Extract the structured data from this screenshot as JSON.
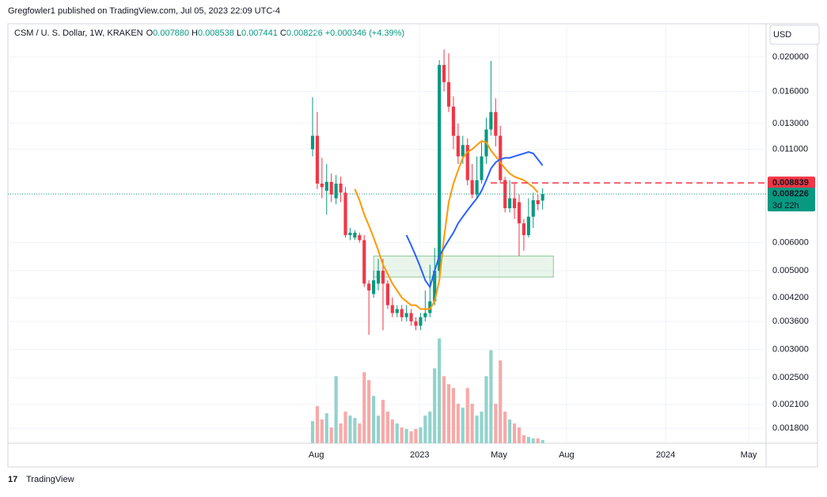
{
  "header": {
    "published": "Gregfowler1 published on TradingView.com, Jul 05, 2023 22:09 UTC-4",
    "footer": "TradingView"
  },
  "chart_data": {
    "type": "candlestick",
    "title": "CSM / U. S. Dollar, 1W, KRAKEN",
    "ohlc_labels": [
      {
        "k": "O",
        "v": "0.007880"
      },
      {
        "k": "H",
        "v": "0.008538"
      },
      {
        "k": "L",
        "v": "0.007441"
      },
      {
        "k": "C",
        "v": "0.008226"
      }
    ],
    "change": "+0.000346 (+4.39%)",
    "currency": "USD",
    "log_scale": true,
    "up_color": "#089981",
    "down_color": "#f23645",
    "volume_up_color": "#92d2cc",
    "volume_down_color": "#f7a9a7",
    "open": [
      0.011,
      0.012,
      0.0088,
      0.0084,
      0.0089,
      0.008,
      0.0088,
      0.0083,
      0.0063,
      0.0062,
      0.0063,
      0.0061,
      0.0046,
      0.0043,
      0.0046,
      0.005,
      0.0046,
      0.004,
      0.0038,
      0.0039,
      0.0037,
      0.0038,
      0.0036,
      0.0035,
      0.0037,
      0.0038,
      0.0041,
      0.005,
      0.019,
      0.017,
      0.0145,
      0.012,
      0.0105,
      0.0113,
      0.009,
      0.0082,
      0.009,
      0.0105,
      0.0125,
      0.014,
      0.012,
      0.009,
      0.0075,
      0.008,
      0.0078,
      0.0068,
      0.0063,
      0.0071,
      0.0079,
      0.00788
    ],
    "high": [
      0.0154,
      0.014,
      0.0104,
      0.01,
      0.0094,
      0.0093,
      0.0092,
      0.0086,
      0.0066,
      0.0065,
      0.0064,
      0.0063,
      0.0047,
      0.005,
      0.0054,
      0.0054,
      0.0047,
      0.0042,
      0.004,
      0.004,
      0.004,
      0.0039,
      0.0037,
      0.0038,
      0.0044,
      0.0052,
      0.0058,
      0.0196,
      0.021,
      0.0205,
      0.0155,
      0.013,
      0.012,
      0.0118,
      0.01,
      0.0105,
      0.0115,
      0.0135,
      0.0195,
      0.0153,
      0.0128,
      0.0092,
      0.009,
      0.0088,
      0.0082,
      0.007,
      0.008,
      0.0083,
      0.0082,
      0.008538
    ],
    "low": [
      0.0105,
      0.0085,
      0.008,
      0.0072,
      0.0078,
      0.0077,
      0.0078,
      0.0062,
      0.0061,
      0.0061,
      0.006,
      0.0045,
      0.0033,
      0.0042,
      0.0044,
      0.0034,
      0.0039,
      0.0037,
      0.0037,
      0.0036,
      0.0036,
      0.0035,
      0.0034,
      0.0034,
      0.0036,
      0.0037,
      0.004,
      0.0048,
      0.016,
      0.014,
      0.011,
      0.01,
      0.01,
      0.0087,
      0.008,
      0.008,
      0.0088,
      0.01,
      0.012,
      0.0112,
      0.0088,
      0.0073,
      0.0073,
      0.007,
      0.0055,
      0.0057,
      0.0062,
      0.0066,
      0.0074,
      0.007441
    ],
    "close": [
      0.012,
      0.0088,
      0.0086,
      0.0089,
      0.0082,
      0.0088,
      0.0083,
      0.0063,
      0.0064,
      0.0064,
      0.0061,
      0.0046,
      0.0044,
      0.0047,
      0.005,
      0.0046,
      0.004,
      0.0038,
      0.0039,
      0.0037,
      0.0038,
      0.0036,
      0.0035,
      0.0037,
      0.0038,
      0.0041,
      0.005,
      0.019,
      0.017,
      0.0145,
      0.012,
      0.0105,
      0.0113,
      0.009,
      0.0082,
      0.009,
      0.0105,
      0.0125,
      0.014,
      0.012,
      0.009,
      0.0075,
      0.008,
      0.0075,
      0.0068,
      0.0063,
      0.0071,
      0.0079,
      0.0077,
      0.008226
    ],
    "volume": [
      28,
      47,
      30,
      38,
      20,
      85,
      25,
      40,
      35,
      32,
      25,
      90,
      80,
      60,
      35,
      55,
      40,
      30,
      25,
      20,
      18,
      15,
      18,
      20,
      35,
      40,
      95,
      133,
      85,
      75,
      70,
      50,
      45,
      70,
      50,
      35,
      40,
      85,
      118,
      50,
      105,
      40,
      30,
      25,
      20,
      10,
      8,
      6,
      6,
      4
    ],
    "overlays": [
      {
        "color": "#ff9800",
        "values": [
          null,
          null,
          null,
          null,
          null,
          null,
          null,
          null,
          null,
          0.0085,
          0.0079,
          0.0072,
          0.0067,
          0.0062,
          0.0057,
          0.0052,
          0.0049,
          0.0046,
          0.0044,
          0.0042,
          0.0041,
          0.004,
          0.004,
          0.0039,
          0.0039,
          0.0039,
          0.0041,
          0.0047,
          0.0062,
          0.0078,
          0.0088,
          0.0096,
          0.0104,
          0.0108,
          0.011,
          0.0113,
          0.0116,
          0.0115,
          0.0109,
          0.0105,
          0.0101,
          0.0097,
          0.0094,
          0.0092,
          0.0091,
          0.009,
          0.0088,
          0.0086,
          0.0083,
          null
        ]
      },
      {
        "color": "#2962ff",
        "values": [
          null,
          null,
          null,
          null,
          null,
          null,
          null,
          null,
          null,
          null,
          null,
          null,
          null,
          null,
          null,
          null,
          null,
          null,
          null,
          null,
          0.0063,
          0.0059,
          0.0055,
          0.0051,
          0.0047,
          0.0045,
          0.005,
          0.0055,
          0.0058,
          0.0061,
          0.0064,
          0.0068,
          0.0071,
          0.0074,
          0.0077,
          0.008,
          0.0084,
          0.009,
          0.0097,
          0.0101,
          0.0103,
          0.0104,
          0.0104,
          0.0105,
          0.0106,
          0.0107,
          0.0108,
          0.0107,
          0.0103,
          0.0099
        ]
      }
    ],
    "zone": {
      "x": [
        13,
        51.3
      ],
      "y": [
        0.0055,
        0.0048
      ]
    },
    "price_line": {
      "value": 0.008839,
      "label": "0.008839"
    },
    "last_price": {
      "value": 0.008226,
      "label": "0.008226",
      "countdown": "3d 22h"
    },
    "xlim": [
      -64.9,
      96.6
    ],
    "ylim": [
      0.001634,
      0.02482
    ],
    "xticks": [
      {
        "value": 0.8,
        "label": "Aug"
      },
      {
        "value": 22.8,
        "label": "2023"
      },
      {
        "value": 39.7,
        "label": "May"
      },
      {
        "value": 54.1,
        "label": "Aug"
      },
      {
        "value": 75.2,
        "label": "2024"
      },
      {
        "value": 92.9,
        "label": "May"
      }
    ],
    "yticks": [
      {
        "value": 0.02,
        "label": "0.020000"
      },
      {
        "value": 0.016,
        "label": "0.016000"
      },
      {
        "value": 0.013,
        "label": "0.013000"
      },
      {
        "value": 0.011,
        "label": "0.011000"
      },
      {
        "value": 0.006,
        "label": "0.006000"
      },
      {
        "value": 0.005,
        "label": "0.005000"
      },
      {
        "value": 0.0042,
        "label": "0.004200"
      },
      {
        "value": 0.0036,
        "label": "0.003600"
      },
      {
        "value": 0.003,
        "label": "0.003000"
      },
      {
        "value": 0.0025,
        "label": "0.002500"
      },
      {
        "value": 0.0021,
        "label": "0.002100"
      },
      {
        "value": 0.0018,
        "label": "0.001800"
      }
    ],
    "grid": true
  }
}
